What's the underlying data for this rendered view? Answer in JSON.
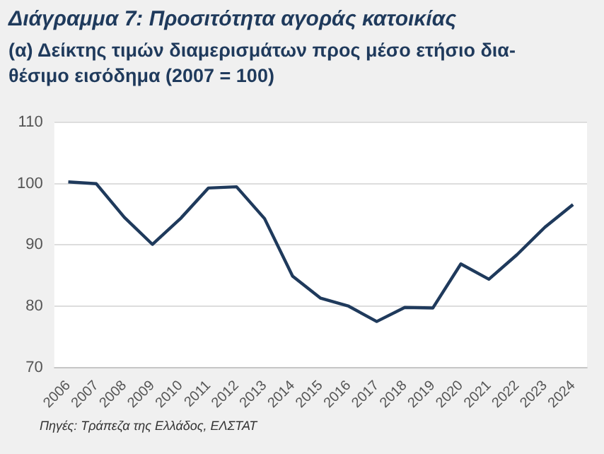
{
  "chart_data": {
    "type": "line",
    "title": "Διάγραμμα 7: Προσιτότητα αγοράς κατοικίας",
    "subtitle": "(α) Δείκτης τιμών διαμερισμάτων προς μέσο ετήσιο δια-θέσιμο εισόδημα (2007 = 100)",
    "categories": [
      "2006",
      "2007",
      "2008",
      "2009",
      "2010",
      "2011",
      "2012",
      "2013",
      "2014",
      "2015",
      "2016",
      "2017",
      "2018",
      "2019",
      "2020",
      "2021",
      "2022",
      "2023",
      "2024"
    ],
    "series": [
      {
        "color": "#1f3a5c",
        "values": [
          100.3,
          100,
          94.5,
          90.1,
          94.3,
          99.3,
          99.5,
          94.3,
          84.9,
          81.3,
          80,
          77.5,
          79.8,
          79.7,
          86.9,
          84.4,
          88.4,
          92.9,
          96.6
        ]
      }
    ],
    "ylim": [
      70,
      110
    ],
    "yticks": [
      70,
      80,
      90,
      100,
      110
    ],
    "grid": "y",
    "legend": false,
    "marker": "none",
    "line_style": "solid",
    "annotations": [
      "Πηγές: Τράπεζα της Ελλάδος, ΕΛΣΤΑΤ"
    ]
  }
}
